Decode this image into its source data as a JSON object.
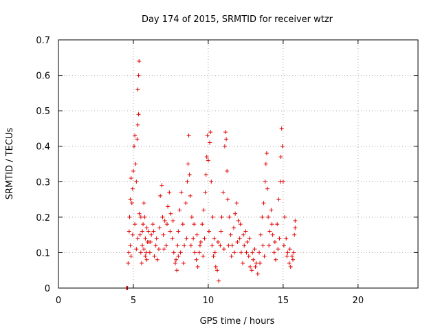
{
  "chart_data": {
    "type": "scatter",
    "title": "Day 174 of 2015, SRMTID for receiver wtzr",
    "xlabel": "GPS time / hours",
    "ylabel": "SRMTID / TECUs",
    "xlim": [
      0,
      24
    ],
    "ylim": [
      0,
      0.7
    ],
    "xticks": [
      0,
      5,
      10,
      15,
      20
    ],
    "xtick_labels": [
      "0",
      "5",
      "10",
      "15",
      "20"
    ],
    "yticks": [
      0,
      0.1,
      0.2,
      0.3,
      0.4,
      0.5,
      0.6,
      0.7
    ],
    "ytick_labels": [
      "0",
      "0.1",
      "0.2",
      "0.3",
      "0.4",
      "0.5",
      "0.6",
      "0.7"
    ],
    "grid": true,
    "marker": "+",
    "series": [
      {
        "name": "SRMTID",
        "color": "#e00000",
        "points": [
          [
            4.55,
            0.0
          ],
          [
            4.58,
            0.0
          ],
          [
            4.62,
            0.0
          ],
          [
            4.65,
            0.07
          ],
          [
            4.7,
            0.1
          ],
          [
            4.72,
            0.16
          ],
          [
            4.75,
            0.2
          ],
          [
            4.8,
            0.25
          ],
          [
            4.85,
            0.31
          ],
          [
            4.9,
            0.24
          ],
          [
            4.95,
            0.28
          ],
          [
            5.0,
            0.33
          ],
          [
            5.05,
            0.4
          ],
          [
            5.1,
            0.43
          ],
          [
            5.15,
            0.35
          ],
          [
            5.2,
            0.3
          ],
          [
            5.25,
            0.42
          ],
          [
            5.3,
            0.46
          ],
          [
            5.35,
            0.49
          ],
          [
            5.3,
            0.56
          ],
          [
            5.35,
            0.6
          ],
          [
            5.38,
            0.64
          ],
          [
            5.4,
            0.21
          ],
          [
            5.45,
            0.15
          ],
          [
            5.5,
            0.1
          ],
          [
            5.55,
            0.07
          ],
          [
            5.6,
            0.12
          ],
          [
            5.65,
            0.18
          ],
          [
            5.7,
            0.24
          ],
          [
            5.75,
            0.2
          ],
          [
            5.8,
            0.14
          ],
          [
            5.85,
            0.1
          ],
          [
            5.9,
            0.08
          ],
          [
            5.95,
            0.13
          ],
          [
            6.0,
            0.16
          ],
          [
            4.8,
            0.12
          ],
          [
            4.85,
            0.09
          ],
          [
            4.95,
            0.15
          ],
          [
            5.1,
            0.18
          ],
          [
            5.2,
            0.11
          ],
          [
            5.3,
            0.14
          ],
          [
            5.5,
            0.2
          ],
          [
            5.6,
            0.16
          ],
          [
            5.7,
            0.11
          ],
          [
            5.8,
            0.09
          ],
          [
            5.9,
            0.17
          ],
          [
            6.05,
            0.13
          ],
          [
            6.1,
            0.1
          ],
          [
            6.2,
            0.15
          ],
          [
            6.3,
            0.18
          ],
          [
            6.4,
            0.09
          ],
          [
            6.5,
            0.12
          ],
          [
            6.6,
            0.08
          ],
          [
            6.7,
            0.11
          ],
          [
            6.8,
            0.26
          ],
          [
            6.9,
            0.29
          ],
          [
            6.95,
            0.2
          ],
          [
            7.0,
            0.15
          ],
          [
            7.1,
            0.19
          ],
          [
            7.2,
            0.12
          ],
          [
            7.3,
            0.23
          ],
          [
            7.4,
            0.27
          ],
          [
            7.5,
            0.21
          ],
          [
            7.6,
            0.14
          ],
          [
            7.7,
            0.1
          ],
          [
            7.8,
            0.07
          ],
          [
            7.9,
            0.05
          ],
          [
            8.0,
            0.09
          ],
          [
            6.15,
            0.13
          ],
          [
            6.35,
            0.16
          ],
          [
            6.55,
            0.14
          ],
          [
            6.75,
            0.17
          ],
          [
            7.05,
            0.11
          ],
          [
            7.25,
            0.18
          ],
          [
            7.45,
            0.16
          ],
          [
            7.65,
            0.19
          ],
          [
            7.85,
            0.08
          ],
          [
            7.95,
            0.12
          ],
          [
            8.0,
            0.16
          ],
          [
            8.1,
            0.22
          ],
          [
            8.2,
            0.27
          ],
          [
            8.3,
            0.18
          ],
          [
            8.4,
            0.12
          ],
          [
            8.5,
            0.24
          ],
          [
            8.6,
            0.3
          ],
          [
            8.65,
            0.35
          ],
          [
            8.7,
            0.43
          ],
          [
            8.75,
            0.32
          ],
          [
            8.8,
            0.26
          ],
          [
            8.9,
            0.2
          ],
          [
            9.0,
            0.14
          ],
          [
            9.1,
            0.1
          ],
          [
            9.2,
            0.08
          ],
          [
            9.3,
            0.06
          ],
          [
            9.4,
            0.1
          ],
          [
            9.5,
            0.13
          ],
          [
            9.6,
            0.18
          ],
          [
            9.7,
            0.22
          ],
          [
            9.8,
            0.27
          ],
          [
            9.85,
            0.32
          ],
          [
            9.9,
            0.37
          ],
          [
            9.95,
            0.43
          ],
          [
            10.0,
            0.36
          ],
          [
            10.1,
            0.41
          ],
          [
            10.15,
            0.44
          ],
          [
            10.2,
            0.3
          ],
          [
            10.3,
            0.2
          ],
          [
            10.4,
            0.14
          ],
          [
            10.5,
            0.06
          ],
          [
            10.6,
            0.05
          ],
          [
            10.7,
            0.02
          ],
          [
            10.8,
            0.12
          ],
          [
            10.9,
            0.2
          ],
          [
            11.0,
            0.27
          ],
          [
            11.1,
            0.4
          ],
          [
            11.15,
            0.44
          ],
          [
            11.2,
            0.42
          ],
          [
            11.25,
            0.33
          ],
          [
            8.15,
            0.1
          ],
          [
            8.35,
            0.07
          ],
          [
            8.55,
            0.14
          ],
          [
            8.85,
            0.12
          ],
          [
            9.05,
            0.18
          ],
          [
            9.25,
            0.15
          ],
          [
            9.45,
            0.12
          ],
          [
            9.65,
            0.09
          ],
          [
            9.75,
            0.14
          ],
          [
            10.05,
            0.16
          ],
          [
            10.25,
            0.12
          ],
          [
            10.35,
            0.09
          ],
          [
            10.45,
            0.1
          ],
          [
            10.65,
            0.13
          ],
          [
            10.85,
            0.16
          ],
          [
            11.05,
            0.11
          ],
          [
            11.3,
            0.25
          ],
          [
            11.4,
            0.2
          ],
          [
            11.5,
            0.15
          ],
          [
            11.6,
            0.12
          ],
          [
            11.7,
            0.17
          ],
          [
            11.8,
            0.21
          ],
          [
            11.9,
            0.24
          ],
          [
            12.0,
            0.19
          ],
          [
            12.1,
            0.14
          ],
          [
            12.2,
            0.1
          ],
          [
            12.3,
            0.07
          ],
          [
            12.4,
            0.12
          ],
          [
            12.5,
            0.16
          ],
          [
            12.6,
            0.13
          ],
          [
            12.7,
            0.09
          ],
          [
            12.8,
            0.06
          ],
          [
            12.9,
            0.05
          ],
          [
            13.0,
            0.08
          ],
          [
            13.1,
            0.11
          ],
          [
            13.2,
            0.07
          ],
          [
            13.3,
            0.04
          ],
          [
            11.35,
            0.12
          ],
          [
            11.55,
            0.09
          ],
          [
            11.75,
            0.1
          ],
          [
            11.95,
            0.13
          ],
          [
            12.15,
            0.18
          ],
          [
            12.35,
            0.15
          ],
          [
            12.55,
            0.1
          ],
          [
            12.75,
            0.14
          ],
          [
            12.95,
            0.1
          ],
          [
            13.15,
            0.06
          ],
          [
            13.4,
            0.1
          ],
          [
            13.5,
            0.15
          ],
          [
            13.6,
            0.2
          ],
          [
            13.7,
            0.24
          ],
          [
            13.8,
            0.3
          ],
          [
            13.85,
            0.35
          ],
          [
            13.9,
            0.38
          ],
          [
            13.95,
            0.28
          ],
          [
            14.0,
            0.2
          ],
          [
            14.1,
            0.16
          ],
          [
            14.2,
            0.22
          ],
          [
            14.3,
            0.15
          ],
          [
            14.4,
            0.1
          ],
          [
            14.5,
            0.08
          ],
          [
            14.6,
            0.18
          ],
          [
            14.7,
            0.25
          ],
          [
            14.8,
            0.3
          ],
          [
            14.85,
            0.37
          ],
          [
            14.9,
            0.45
          ],
          [
            14.95,
            0.4
          ],
          [
            15.0,
            0.3
          ],
          [
            15.1,
            0.2
          ],
          [
            15.2,
            0.14
          ],
          [
            15.3,
            0.1
          ],
          [
            15.4,
            0.07
          ],
          [
            15.5,
            0.06
          ],
          [
            15.6,
            0.09
          ],
          [
            15.7,
            0.1
          ],
          [
            15.75,
            0.15
          ],
          [
            15.8,
            0.19
          ],
          [
            13.45,
            0.07
          ],
          [
            13.65,
            0.12
          ],
          [
            13.75,
            0.09
          ],
          [
            14.05,
            0.12
          ],
          [
            14.25,
            0.18
          ],
          [
            14.45,
            0.13
          ],
          [
            14.65,
            0.11
          ],
          [
            14.75,
            0.14
          ],
          [
            15.05,
            0.12
          ],
          [
            15.25,
            0.09
          ],
          [
            15.45,
            0.11
          ],
          [
            15.65,
            0.08
          ],
          [
            15.8,
            0.17
          ]
        ]
      }
    ]
  }
}
